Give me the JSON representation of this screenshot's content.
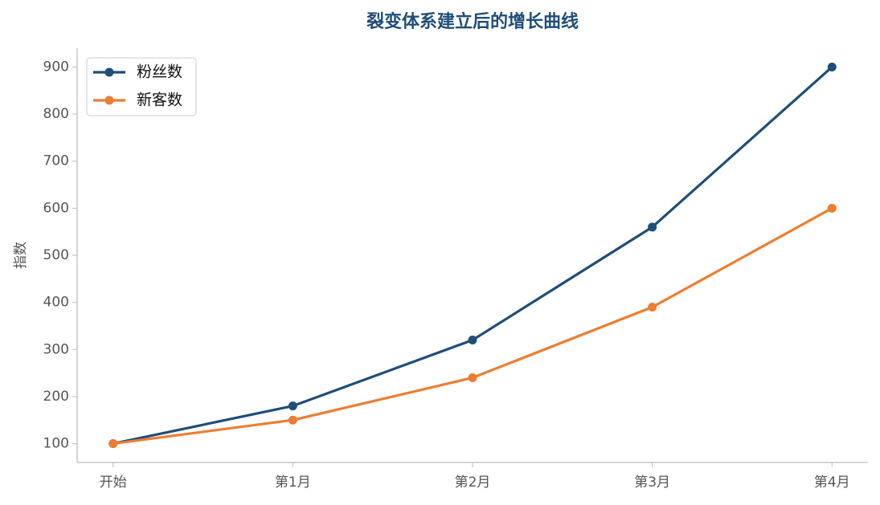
{
  "chart_data": {
    "type": "line",
    "title": "裂变体系建立后的增长曲线",
    "ylabel": "指数",
    "categories": [
      "开始",
      "第1月",
      "第2月",
      "第3月",
      "第4月"
    ],
    "series": [
      {
        "name": "粉丝数",
        "color": "#1f4e79",
        "values": [
          100,
          180,
          320,
          560,
          900
        ]
      },
      {
        "name": "新客数",
        "color": "#ed7d31",
        "values": [
          100,
          150,
          240,
          390,
          600
        ]
      }
    ],
    "ylim": [
      60,
      940
    ],
    "yticks": [
      100,
      200,
      300,
      400,
      500,
      600,
      700,
      800,
      900
    ],
    "grid": false,
    "legend": "upper left"
  }
}
